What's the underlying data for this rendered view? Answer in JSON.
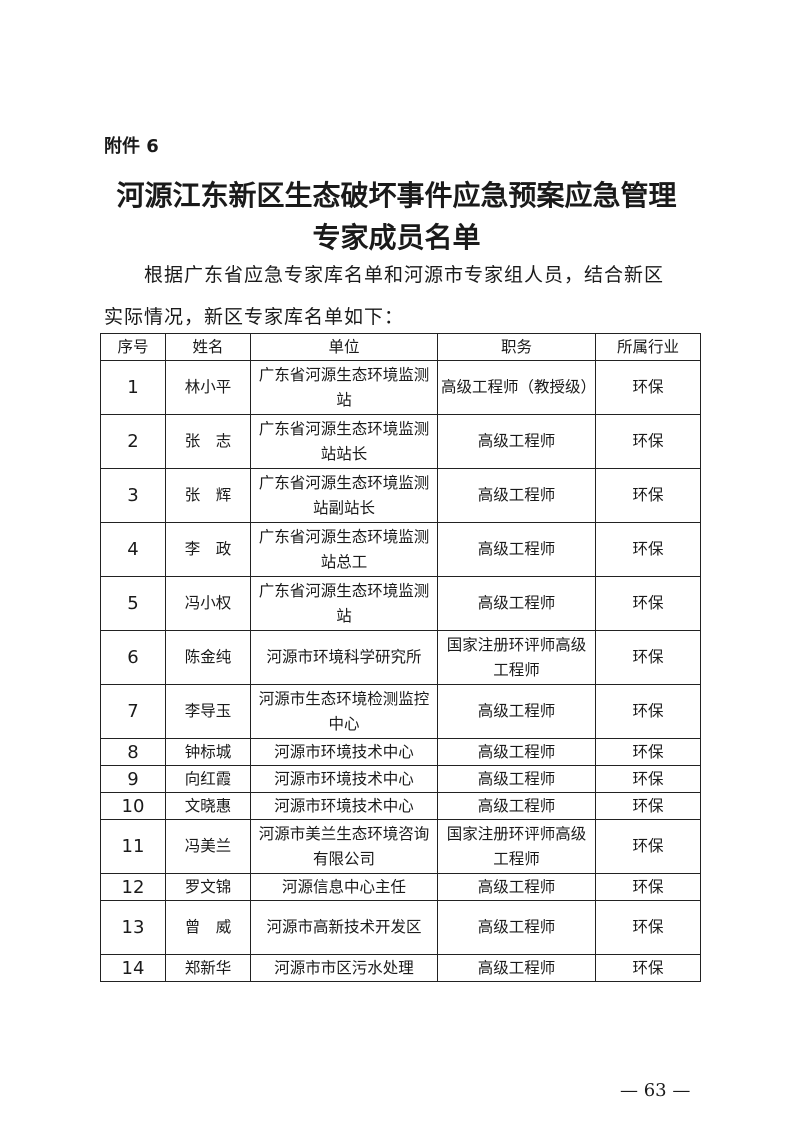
{
  "attachment_label": "附件 6",
  "title_line1": "河源江东新区生态破坏事件应急预案应急管理",
  "title_line2": "专家成员名单",
  "intro_line1": "根据广东省应急专家库名单和河源市专家组人员，结合新区",
  "intro_line2": "实际情况，新区专家库名单如下：",
  "table": {
    "headers": [
      "序号",
      "姓名",
      "单位",
      "职务",
      "所属行业"
    ],
    "rows": [
      {
        "no": "1",
        "name": "林小平",
        "unit": "广东省河源生态环境监测站",
        "title": "高级工程师（教授级）",
        "industry": "环保",
        "tall": true
      },
      {
        "no": "2",
        "name": "张　志",
        "unit": "广东省河源生态环境监测站站长",
        "title": "高级工程师",
        "industry": "环保",
        "tall": true
      },
      {
        "no": "3",
        "name": "张　辉",
        "unit": "广东省河源生态环境监测站副站长",
        "title": "高级工程师",
        "industry": "环保",
        "tall": true
      },
      {
        "no": "4",
        "name": "李　政",
        "unit": "广东省河源生态环境监测站总工",
        "title": "高级工程师",
        "industry": "环保",
        "tall": true
      },
      {
        "no": "5",
        "name": "冯小权",
        "unit": "广东省河源生态环境监测站",
        "title": "高级工程师",
        "industry": "环保",
        "tall": true
      },
      {
        "no": "6",
        "name": "陈金纯",
        "unit": "河源市环境科学研究所",
        "title": "国家注册环评师高级工程师",
        "industry": "环保",
        "tall": true
      },
      {
        "no": "7",
        "name": "李导玉",
        "unit": "河源市生态环境检测监控中心",
        "title": "高级工程师",
        "industry": "环保",
        "tall": true
      },
      {
        "no": "8",
        "name": "钟标城",
        "unit": "河源市环境技术中心",
        "title": "高级工程师",
        "industry": "环保",
        "tall": false
      },
      {
        "no": "9",
        "name": "向红霞",
        "unit": "河源市环境技术中心",
        "title": "高级工程师",
        "industry": "环保",
        "tall": false
      },
      {
        "no": "10",
        "name": "文晓惠",
        "unit": "河源市环境技术中心",
        "title": "高级工程师",
        "industry": "环保",
        "tall": false
      },
      {
        "no": "11",
        "name": "冯美兰",
        "unit": "河源市美兰生态环境咨询有限公司",
        "title": "国家注册环评师高级工程师",
        "industry": "环保",
        "tall": true
      },
      {
        "no": "12",
        "name": "罗文锦",
        "unit": "河源信息中心主任",
        "title": "高级工程师",
        "industry": "环保",
        "tall": false
      },
      {
        "no": "13",
        "name": "曾　威",
        "unit": "河源市高新技术开发区",
        "title": "高级工程师",
        "industry": "环保",
        "tall": true
      },
      {
        "no": "14",
        "name": "郑新华",
        "unit": "河源市市区污水处理",
        "title": "高级工程师",
        "industry": "环保",
        "tall": false
      }
    ]
  },
  "page_number": "— 63 —"
}
